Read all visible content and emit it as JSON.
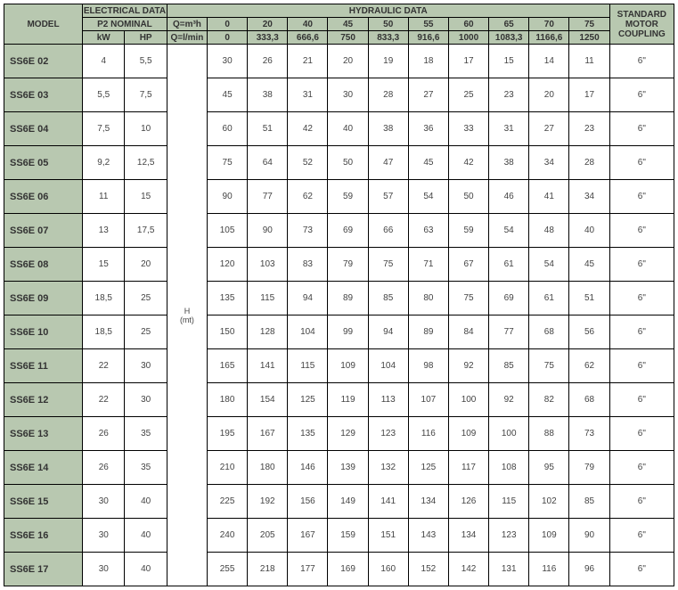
{
  "headers": {
    "model": "MODEL",
    "electrical": "ELECTRICAL DATA",
    "p2nominal": "P2 NOMINAL",
    "kw": "kW",
    "hp": "HP",
    "hydraulic": "HYDRAULIC DATA",
    "q_m3h": "Q=m³h",
    "q_lmin": "Q=l/min",
    "hmt": "H\n(mt)",
    "coupling": "STANDARD MOTOR COUPLING"
  },
  "q_m3h_values": [
    "0",
    "20",
    "40",
    "45",
    "50",
    "55",
    "60",
    "65",
    "70",
    "75"
  ],
  "q_lmin_values": [
    "0",
    "333,3",
    "666,6",
    "750",
    "833,3",
    "916,6",
    "1000",
    "1083,3",
    "1166,6",
    "1250"
  ],
  "rows": [
    {
      "model": "SS6E 02",
      "kw": "4",
      "hp": "5,5",
      "h": [
        "30",
        "26",
        "21",
        "20",
        "19",
        "18",
        "17",
        "15",
        "14",
        "11"
      ],
      "coup": "6\""
    },
    {
      "model": "SS6E 03",
      "kw": "5,5",
      "hp": "7,5",
      "h": [
        "45",
        "38",
        "31",
        "30",
        "28",
        "27",
        "25",
        "23",
        "20",
        "17"
      ],
      "coup": "6\""
    },
    {
      "model": "SS6E 04",
      "kw": "7,5",
      "hp": "10",
      "h": [
        "60",
        "51",
        "42",
        "40",
        "38",
        "36",
        "33",
        "31",
        "27",
        "23"
      ],
      "coup": "6\""
    },
    {
      "model": "SS6E 05",
      "kw": "9,2",
      "hp": "12,5",
      "h": [
        "75",
        "64",
        "52",
        "50",
        "47",
        "45",
        "42",
        "38",
        "34",
        "28"
      ],
      "coup": "6\""
    },
    {
      "model": "SS6E 06",
      "kw": "11",
      "hp": "15",
      "h": [
        "90",
        "77",
        "62",
        "59",
        "57",
        "54",
        "50",
        "46",
        "41",
        "34"
      ],
      "coup": "6\""
    },
    {
      "model": "SS6E 07",
      "kw": "13",
      "hp": "17,5",
      "h": [
        "105",
        "90",
        "73",
        "69",
        "66",
        "63",
        "59",
        "54",
        "48",
        "40"
      ],
      "coup": "6\""
    },
    {
      "model": "SS6E 08",
      "kw": "15",
      "hp": "20",
      "h": [
        "120",
        "103",
        "83",
        "79",
        "75",
        "71",
        "67",
        "61",
        "54",
        "45"
      ],
      "coup": "6\""
    },
    {
      "model": "SS6E 09",
      "kw": "18,5",
      "hp": "25",
      "h": [
        "135",
        "115",
        "94",
        "89",
        "85",
        "80",
        "75",
        "69",
        "61",
        "51"
      ],
      "coup": "6\""
    },
    {
      "model": "SS6E 10",
      "kw": "18,5",
      "hp": "25",
      "h": [
        "150",
        "128",
        "104",
        "99",
        "94",
        "89",
        "84",
        "77",
        "68",
        "56"
      ],
      "coup": "6\""
    },
    {
      "model": "SS6E 11",
      "kw": "22",
      "hp": "30",
      "h": [
        "165",
        "141",
        "115",
        "109",
        "104",
        "98",
        "92",
        "85",
        "75",
        "62"
      ],
      "coup": "6\""
    },
    {
      "model": "SS6E 12",
      "kw": "22",
      "hp": "30",
      "h": [
        "180",
        "154",
        "125",
        "119",
        "113",
        "107",
        "100",
        "92",
        "82",
        "68"
      ],
      "coup": "6\""
    },
    {
      "model": "SS6E 13",
      "kw": "26",
      "hp": "35",
      "h": [
        "195",
        "167",
        "135",
        "129",
        "123",
        "116",
        "109",
        "100",
        "88",
        "73"
      ],
      "coup": "6\""
    },
    {
      "model": "SS6E 14",
      "kw": "26",
      "hp": "35",
      "h": [
        "210",
        "180",
        "146",
        "139",
        "132",
        "125",
        "117",
        "108",
        "95",
        "79"
      ],
      "coup": "6\""
    },
    {
      "model": "SS6E 15",
      "kw": "30",
      "hp": "40",
      "h": [
        "225",
        "192",
        "156",
        "149",
        "141",
        "134",
        "126",
        "115",
        "102",
        "85"
      ],
      "coup": "6\""
    },
    {
      "model": "SS6E 16",
      "kw": "30",
      "hp": "40",
      "h": [
        "240",
        "205",
        "167",
        "159",
        "151",
        "143",
        "134",
        "123",
        "109",
        "90"
      ],
      "coup": "6\""
    },
    {
      "model": "SS6E 17",
      "kw": "30",
      "hp": "40",
      "h": [
        "255",
        "218",
        "177",
        "169",
        "160",
        "152",
        "142",
        "131",
        "116",
        "96"
      ],
      "coup": "6\""
    }
  ]
}
